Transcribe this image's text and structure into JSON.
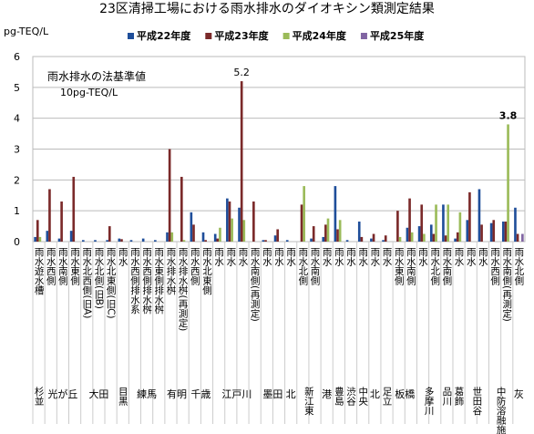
{
  "chart_data": {
    "type": "bar",
    "title": "23区清掃工場における雨水排水のダイオキシン類測定結果",
    "y_label": "pg-TEQ/L",
    "annotations": [
      "雨水排水の法基準値",
      "10pg-TEQ/L"
    ],
    "ylim": [
      0,
      6
    ],
    "yticks": [
      0,
      1,
      2,
      3,
      4,
      5,
      6
    ],
    "grid": true,
    "categories": [
      "雨水遊水槽",
      "雨水西側",
      "雨水南側",
      "雨水東側",
      "雨水北西側(旧A)",
      "雨水北側(旧B)",
      "雨水北東側(旧C)",
      "雨水",
      "雨水西側排水系",
      "雨水西側排水桝",
      "雨水東側排水桝",
      "雨水排水桝",
      "雨水排水桝(再測定)",
      "雨水西側",
      "雨水北東側",
      "雨水",
      "雨水",
      "雨水",
      "雨水南側(再測定)",
      "雨水",
      "雨水",
      "雨水",
      "雨水北側",
      "雨水南側",
      "雨水",
      "雨水",
      "雨水",
      "雨水",
      "雨水",
      "雨水",
      "雨水東側",
      "雨水南側",
      "雨水",
      "雨水北側",
      "雨水南側",
      "雨水",
      "雨水",
      "雨水",
      "雨水西側",
      "雨水南側(再測定)",
      "雨水北側"
    ],
    "groups": [
      "杉並",
      "光が丘",
      "光が丘",
      "光が丘",
      "大田",
      "大田",
      "大田",
      "目黒",
      "練馬",
      "練馬",
      "練馬",
      "有明",
      "有明",
      "千歳",
      "千歳",
      "江戸川",
      "江戸川",
      "江戸川",
      "江戸川",
      "墨田",
      "墨田",
      "北",
      "新江東",
      "新江東",
      "港",
      "豊島",
      "渋谷",
      "中央",
      "北",
      "足立",
      "板橋",
      "板橋",
      "多摩川",
      "多摩川",
      "品川",
      "葛飾",
      "世田谷",
      "世田谷",
      "中防溶融施設",
      "中防溶融施設",
      "灰"
    ],
    "series": [
      {
        "name": "平成22年度",
        "color": "#1f4e9a",
        "values": [
          0.15,
          0.35,
          0.1,
          0.35,
          0.05,
          0.05,
          0.05,
          0.1,
          0.05,
          0.1,
          0.05,
          0.3,
          null,
          0.95,
          0.3,
          0.25,
          1.4,
          1.1,
          null,
          0.05,
          0.2,
          0.05,
          null,
          0.1,
          0.15,
          1.8,
          0.05,
          0.65,
          0.1,
          0.05,
          null,
          0.45,
          0.5,
          0.55,
          1.2,
          0.1,
          0.7,
          1.7,
          0.6,
          0.65,
          1.1
        ],
        "value_labels": [
          null,
          null,
          null,
          null,
          null,
          null,
          null,
          null,
          null,
          null,
          null,
          null,
          null,
          null,
          null,
          null,
          null,
          null,
          null,
          null,
          null,
          null,
          null,
          null,
          null,
          null,
          null,
          null,
          null,
          null,
          null,
          null,
          null,
          null,
          null,
          null,
          null,
          null,
          null,
          null,
          null
        ]
      },
      {
        "name": "平成23年度",
        "color": "#7b2a2a",
        "values": [
          0.7,
          1.7,
          1.3,
          2.1,
          null,
          null,
          0.5,
          0.08,
          null,
          null,
          null,
          3.0,
          2.1,
          0.55,
          0.05,
          0.1,
          1.3,
          5.2,
          1.3,
          0.05,
          0.4,
          null,
          1.2,
          0.5,
          0.55,
          0.4,
          null,
          0.15,
          0.25,
          0.2,
          1.0,
          1.4,
          1.2,
          0.25,
          0.2,
          0.3,
          1.6,
          0.55,
          0.7,
          0.65,
          0.25
        ],
        "value_labels": [
          null,
          null,
          null,
          null,
          null,
          null,
          null,
          null,
          null,
          null,
          null,
          null,
          null,
          null,
          null,
          null,
          null,
          "5.2",
          null,
          null,
          null,
          null,
          null,
          null,
          null,
          null,
          null,
          null,
          null,
          null,
          null,
          null,
          null,
          null,
          null,
          null,
          null,
          null,
          null,
          null,
          null
        ]
      },
      {
        "name": "平成24年度",
        "color": "#9bbb59",
        "values": [
          0.15,
          null,
          null,
          null,
          null,
          null,
          null,
          null,
          null,
          null,
          null,
          0.3,
          0.05,
          null,
          null,
          0.45,
          0.75,
          0.7,
          null,
          null,
          null,
          null,
          1.8,
          null,
          0.75,
          0.7,
          null,
          null,
          null,
          null,
          0.15,
          0.3,
          0.25,
          1.2,
          1.2,
          0.95,
          null,
          null,
          null,
          3.8,
          null
        ],
        "value_labels": [
          null,
          null,
          null,
          null,
          null,
          null,
          null,
          null,
          null,
          null,
          null,
          null,
          null,
          null,
          null,
          null,
          null,
          null,
          null,
          null,
          null,
          null,
          null,
          null,
          null,
          null,
          null,
          null,
          null,
          null,
          null,
          null,
          null,
          null,
          null,
          null,
          null,
          null,
          null,
          "3.8",
          null
        ]
      },
      {
        "name": "平成25年度",
        "color": "#8064a2",
        "values": [
          null,
          null,
          null,
          null,
          null,
          null,
          null,
          null,
          null,
          null,
          null,
          null,
          null,
          null,
          null,
          null,
          null,
          null,
          null,
          null,
          null,
          null,
          null,
          null,
          null,
          null,
          null,
          null,
          null,
          null,
          null,
          null,
          null,
          null,
          null,
          null,
          null,
          null,
          null,
          null,
          0.25
        ],
        "value_labels": [
          null,
          null,
          null,
          null,
          null,
          null,
          null,
          null,
          null,
          null,
          null,
          null,
          null,
          null,
          null,
          null,
          null,
          null,
          null,
          null,
          null,
          null,
          null,
          null,
          null,
          null,
          null,
          null,
          null,
          null,
          null,
          null,
          null,
          null,
          null,
          null,
          null,
          null,
          null,
          null,
          null
        ]
      }
    ]
  }
}
